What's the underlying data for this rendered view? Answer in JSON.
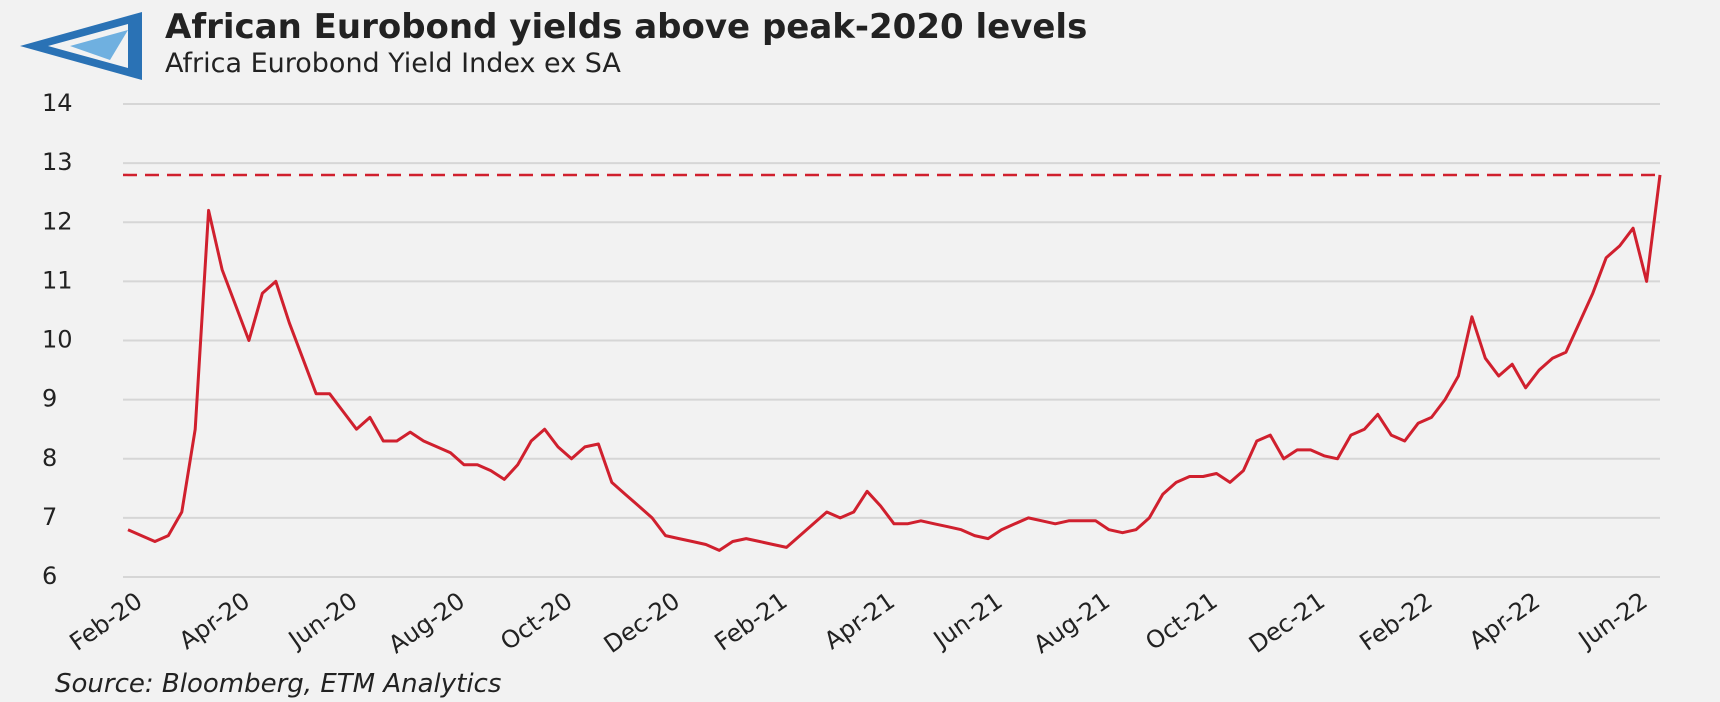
{
  "chart_data": {
    "type": "line",
    "title": "African Eurobond yields above peak-2020 levels",
    "subtitle": "Africa Eurobond Yield Index ex SA",
    "source": "Source: Bloomberg, ETM Analytics",
    "categories": [
      "Feb-20",
      null,
      null,
      null,
      null,
      null,
      null,
      null,
      "Apr-20",
      null,
      null,
      null,
      null,
      null,
      null,
      null,
      "Jun-20",
      null,
      null,
      null,
      null,
      null,
      null,
      null,
      "Aug-20",
      null,
      null,
      null,
      null,
      null,
      null,
      null,
      "Oct-20",
      null,
      null,
      null,
      null,
      null,
      null,
      null,
      "Dec-20",
      null,
      null,
      null,
      null,
      null,
      null,
      null,
      "Feb-21",
      null,
      null,
      null,
      null,
      null,
      null,
      null,
      "Apr-21",
      null,
      null,
      null,
      null,
      null,
      null,
      null,
      "Jun-21",
      null,
      null,
      null,
      null,
      null,
      null,
      null,
      "Aug-21",
      null,
      null,
      null,
      null,
      null,
      null,
      null,
      "Oct-21",
      null,
      null,
      null,
      null,
      null,
      null,
      null,
      "Dec-21",
      null,
      null,
      null,
      null,
      null,
      null,
      null,
      "Feb-22",
      null,
      null,
      null,
      null,
      null,
      null,
      null,
      "Apr-22",
      null,
      null,
      null,
      null,
      null,
      null,
      null,
      "Jun-22",
      null,
      null
    ],
    "values": [
      6.8,
      6.7,
      6.6,
      6.7,
      7.1,
      8.5,
      12.2,
      11.2,
      10.6,
      10.0,
      10.8,
      11.0,
      10.3,
      9.7,
      9.1,
      9.1,
      8.8,
      8.5,
      8.7,
      8.3,
      8.3,
      8.45,
      8.3,
      8.2,
      8.1,
      7.9,
      7.9,
      7.8,
      7.65,
      7.9,
      8.3,
      8.5,
      8.2,
      8.0,
      8.2,
      8.25,
      7.6,
      7.4,
      7.2,
      7.0,
      6.7,
      6.65,
      6.6,
      6.55,
      6.45,
      6.6,
      6.65,
      6.6,
      6.55,
      6.5,
      6.7,
      6.9,
      7.1,
      7.0,
      7.1,
      7.45,
      7.2,
      6.9,
      6.9,
      6.95,
      6.9,
      6.85,
      6.8,
      6.7,
      6.65,
      6.8,
      6.9,
      7.0,
      6.95,
      6.9,
      6.95,
      6.95,
      6.95,
      6.8,
      6.75,
      6.8,
      7.0,
      7.4,
      7.6,
      7.7,
      7.7,
      7.75,
      7.6,
      7.8,
      8.3,
      8.4,
      8.0,
      8.15,
      8.15,
      8.05,
      8.0,
      8.4,
      8.5,
      8.75,
      8.4,
      8.3,
      8.6,
      8.7,
      9.0,
      9.4,
      10.4,
      9.7,
      9.4,
      9.6,
      9.2,
      9.5,
      9.7,
      9.8,
      10.3,
      10.8,
      11.4,
      11.6,
      11.9,
      11.0,
      12.8
    ],
    "color": "#d0202e",
    "reference_line": 12.8,
    "ylim": [
      6,
      14
    ],
    "yticks": [
      6,
      7,
      8,
      9,
      10,
      11,
      12,
      13,
      14
    ],
    "grid": true
  }
}
